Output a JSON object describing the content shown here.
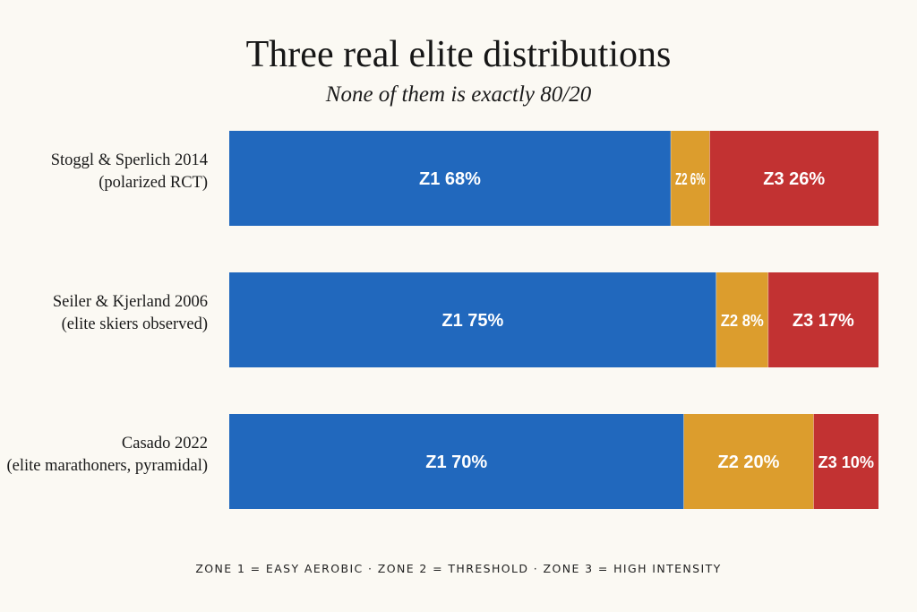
{
  "title": "Three real elite distributions",
  "subtitle": "None of them is exactly 80/20",
  "footnote": "ZONE 1 = EASY AEROBIC · ZONE 2 = THRESHOLD · ZONE 3 = HIGH INTENSITY",
  "colors": {
    "z1": "#2168bd",
    "z2": "#dc9d2d",
    "z3": "#c23232",
    "background": "#fbf9f3"
  },
  "chart_data": {
    "type": "bar",
    "orientation": "horizontal-stacked-100",
    "categories": [
      {
        "line1": "Stoggl & Sperlich 2014",
        "line2": "(polarized RCT)"
      },
      {
        "line1": "Seiler & Kjerland 2006",
        "line2": "(elite skiers observed)"
      },
      {
        "line1": "Casado 2022",
        "line2": "(elite marathoners, pyramidal)"
      }
    ],
    "series": [
      {
        "name": "Z1",
        "color": "#2168bd",
        "values": [
          68,
          75,
          70
        ],
        "labels": [
          "Z1 68%",
          "Z1 75%",
          "Z1 70%"
        ]
      },
      {
        "name": "Z2",
        "color": "#dc9d2d",
        "values": [
          6,
          8,
          20
        ],
        "labels": [
          "Z2 6%",
          "Z2 8%",
          "Z2 20%"
        ]
      },
      {
        "name": "Z3",
        "color": "#c23232",
        "values": [
          26,
          17,
          10
        ],
        "labels": [
          "Z3 26%",
          "Z3 17%",
          "Z3 10%"
        ]
      }
    ],
    "xlim": [
      0,
      100
    ],
    "grid": false,
    "legend": "none"
  }
}
